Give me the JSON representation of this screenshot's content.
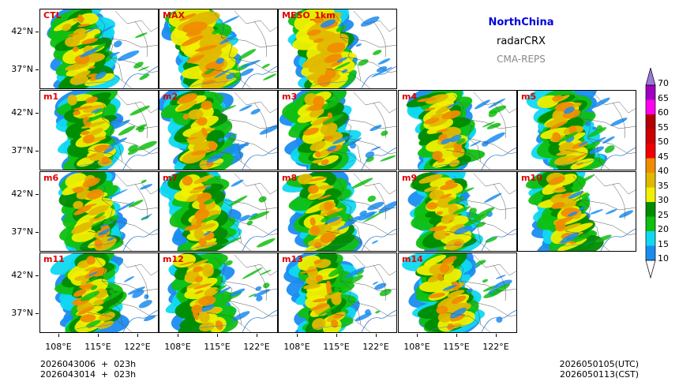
{
  "titles": {
    "region": "NorthChina",
    "variable": "radarCRX",
    "model": "CMA-REPS"
  },
  "panels": [
    {
      "label": "CTL"
    },
    {
      "label": "MAX"
    },
    {
      "label": "MESO_1km"
    },
    {
      "label": "m1"
    },
    {
      "label": "m2"
    },
    {
      "label": "m3"
    },
    {
      "label": "m4"
    },
    {
      "label": "m5"
    },
    {
      "label": "m6"
    },
    {
      "label": "m7"
    },
    {
      "label": "m8"
    },
    {
      "label": "m9"
    },
    {
      "label": "m10"
    },
    {
      "label": "m11"
    },
    {
      "label": "m12"
    },
    {
      "label": "m13"
    },
    {
      "label": "m14"
    }
  ],
  "axes": {
    "lat_ticks": [
      "42°N",
      "37°N"
    ],
    "lon_ticks": [
      "108°E",
      "115°E",
      "122°E"
    ]
  },
  "colorbar": {
    "levels": [
      "10",
      "15",
      "20",
      "25",
      "30",
      "35",
      "40",
      "45",
      "50",
      "55",
      "60",
      "65",
      "70"
    ],
    "colors": [
      "#1a8cf0",
      "#10d8f0",
      "#10c010",
      "#008c00",
      "#f0f000",
      "#e0b800",
      "#f08c00",
      "#f00000",
      "#d00000",
      "#b40000",
      "#ff00f0",
      "#a000c0",
      "#9c78dc"
    ]
  },
  "init_time": {
    "utc_line": "2026043006  +  023h",
    "cst_line": "2026043014  +  023h"
  },
  "valid_time": {
    "utc_line": "2026050105(UTC)",
    "cst_line": "2026050113(CST)"
  }
}
